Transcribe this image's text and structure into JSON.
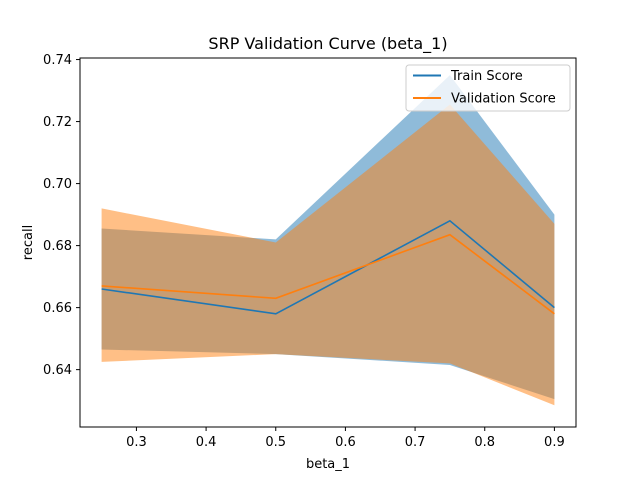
{
  "chart_data": {
    "type": "line",
    "title": "SRP Validation Curve (beta_1)",
    "xlabel": "beta_1",
    "ylabel": "recall",
    "x": [
      0.25,
      0.5,
      0.75,
      0.9
    ],
    "xlim": [
      0.219,
      0.931
    ],
    "ylim": [
      0.6215,
      0.7405
    ],
    "xticks": [
      0.3,
      0.4,
      0.5,
      0.6,
      0.7,
      0.8,
      0.9
    ],
    "xtick_labels": [
      "0.3",
      "0.4",
      "0.5",
      "0.6",
      "0.7",
      "0.8",
      "0.9"
    ],
    "yticks": [
      0.64,
      0.66,
      0.68,
      0.7,
      0.72,
      0.74
    ],
    "ytick_labels": [
      "0.64",
      "0.66",
      "0.68",
      "0.70",
      "0.72",
      "0.74"
    ],
    "grid": false,
    "legend": "top-right",
    "series": [
      {
        "name": "Train Score",
        "color": "#1f77b4",
        "band_color": "#1f77b4",
        "values": [
          0.666,
          0.658,
          0.688,
          0.66
        ],
        "lower": [
          0.6465,
          0.645,
          0.6415,
          0.6305
        ],
        "upper": [
          0.6855,
          0.682,
          0.735,
          0.69
        ]
      },
      {
        "name": "Validation Score",
        "color": "#ff7f0e",
        "band_color": "#ff7f0e",
        "values": [
          0.667,
          0.663,
          0.6835,
          0.658
        ],
        "lower": [
          0.6425,
          0.645,
          0.642,
          0.6285
        ],
        "upper": [
          0.692,
          0.681,
          0.7255,
          0.687
        ]
      }
    ]
  }
}
